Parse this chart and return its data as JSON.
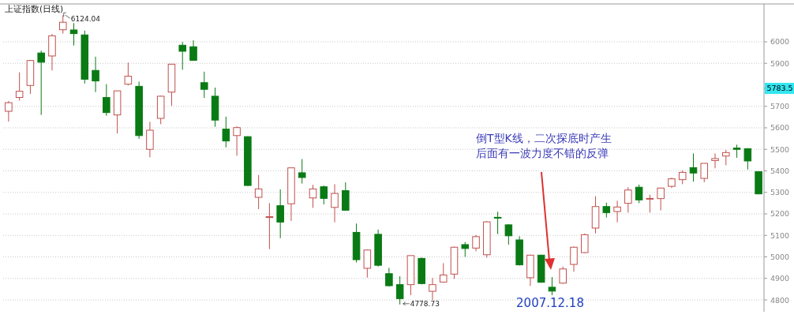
{
  "chart_data": {
    "type": "candlestick",
    "title": "上证指数(日线)",
    "categories": [
      null,
      null,
      null,
      null,
      null,
      null,
      null,
      null,
      null,
      null,
      null,
      null,
      null,
      null,
      null,
      null,
      null,
      null,
      null,
      null,
      null,
      null,
      null,
      null,
      null,
      null,
      null,
      null,
      null,
      null,
      null,
      null,
      null,
      null,
      null,
      null,
      null,
      null,
      null,
      null,
      null,
      null,
      null,
      null,
      null,
      null,
      null,
      null,
      null,
      null,
      null,
      null,
      null,
      null,
      null,
      null,
      null,
      null,
      null,
      null,
      null,
      null,
      null,
      null,
      null,
      null,
      null,
      null,
      null,
      null
    ],
    "ohlc": [
      [
        5677,
        5725,
        5629,
        5717
      ],
      [
        5741,
        5858,
        5727,
        5770
      ],
      [
        5797,
        5915,
        5758,
        5913
      ],
      [
        5948,
        5959,
        5660,
        5905
      ],
      [
        5934,
        6036,
        5867,
        6028
      ],
      [
        6056,
        6124.04,
        6038,
        6091
      ],
      [
        6055,
        6087,
        5983,
        6038
      ],
      [
        6032,
        6052,
        5806,
        5826
      ],
      [
        5867,
        5931,
        5766,
        5818
      ],
      [
        5741,
        5803,
        5656,
        5671
      ],
      [
        5660,
        5772,
        5574,
        5772
      ],
      [
        5803,
        5903,
        5797,
        5840
      ],
      [
        5793,
        5815,
        5549,
        5564
      ],
      [
        5500,
        5628,
        5463,
        5589
      ],
      [
        5644,
        5750,
        5617,
        5747
      ],
      [
        5766,
        5896,
        5703,
        5896
      ],
      [
        5984,
        5999,
        5870,
        5956
      ],
      [
        5977,
        6007,
        5914,
        5914
      ],
      [
        5810,
        5861,
        5739,
        5779
      ],
      [
        5747,
        5787,
        5605,
        5636
      ],
      [
        5594,
        5652,
        5509,
        5539
      ],
      [
        5564,
        5607,
        5470,
        5601
      ],
      [
        5559,
        5561,
        5330,
        5332
      ],
      [
        5277,
        5381,
        5222,
        5316
      ],
      [
        5183,
        5250,
        5036,
        5187
      ],
      [
        5238,
        5314,
        5087,
        5162
      ],
      [
        5247,
        5414,
        5167,
        5414
      ],
      [
        5391,
        5455,
        5341,
        5369
      ],
      [
        5274,
        5335,
        5228,
        5316
      ],
      [
        5326,
        5332,
        5244,
        5272
      ],
      [
        5230,
        5338,
        5161,
        5295
      ],
      [
        5308,
        5347,
        5215,
        5217
      ],
      [
        5114,
        5155,
        4974,
        4987
      ],
      [
        4947,
        5035,
        4904,
        5032
      ],
      [
        5105,
        5127,
        4955,
        4961
      ],
      [
        4922,
        4949,
        4862,
        4866
      ],
      [
        4871,
        4910,
        4778.73,
        4806
      ],
      [
        4871,
        5006,
        4822,
        5006
      ],
      [
        4993,
        4997,
        4872,
        4876
      ],
      [
        4840,
        4902,
        4800,
        4871
      ],
      [
        4883,
        4971,
        4880,
        4916
      ],
      [
        4920,
        5048,
        4898,
        5045
      ],
      [
        5057,
        5069,
        5000,
        5039
      ],
      [
        5041,
        5102,
        5026,
        5094
      ],
      [
        5010,
        5166,
        4996,
        5163
      ],
      [
        5184,
        5210,
        5106,
        5182
      ],
      [
        5149,
        5152,
        5057,
        5098
      ],
      [
        5079,
        5096,
        4960,
        4963
      ],
      [
        4903,
        5010,
        4865,
        5008
      ],
      [
        5008,
        5010,
        4880,
        4882
      ],
      [
        4859,
        4906,
        4822,
        4841
      ],
      [
        4878,
        4955,
        4875,
        4944
      ],
      [
        4965,
        5048,
        4931,
        5045
      ],
      [
        5020,
        5108,
        5018,
        5103
      ],
      [
        5134,
        5282,
        5109,
        5234
      ],
      [
        5234,
        5252,
        5183,
        5206
      ],
      [
        5211,
        5261,
        5161,
        5232
      ],
      [
        5249,
        5324,
        5206,
        5311
      ],
      [
        5324,
        5336,
        5250,
        5265
      ],
      [
        5269,
        5289,
        5206,
        5272
      ],
      [
        5271,
        5322,
        5216,
        5320
      ],
      [
        5328,
        5368,
        5320,
        5363
      ],
      [
        5359,
        5402,
        5338,
        5393
      ],
      [
        5415,
        5481,
        5350,
        5390
      ],
      [
        5365,
        5435,
        5347,
        5435
      ],
      [
        5448,
        5481,
        5412,
        5457
      ],
      [
        5469,
        5497,
        5426,
        5485
      ],
      [
        5506,
        5522,
        5461,
        5500
      ],
      [
        5503,
        5506,
        5406,
        5446
      ],
      [
        5396,
        5398,
        5291,
        5293
      ]
    ],
    "ylim": [
      4745,
      6176
    ],
    "yticks": [
      4800,
      4900,
      5000,
      5100,
      5200,
      5300,
      5400,
      5500,
      5600,
      5700,
      {
        "value": 5783.5,
        "label": "5783.5"
      },
      5900,
      6000
    ],
    "grid": "y",
    "annotations": [
      "6124.04",
      "4778.73",
      "倒T型K线，二次探底时产生",
      "后面有一波力度不错的反弹",
      "2007.12.18"
    ]
  }
}
